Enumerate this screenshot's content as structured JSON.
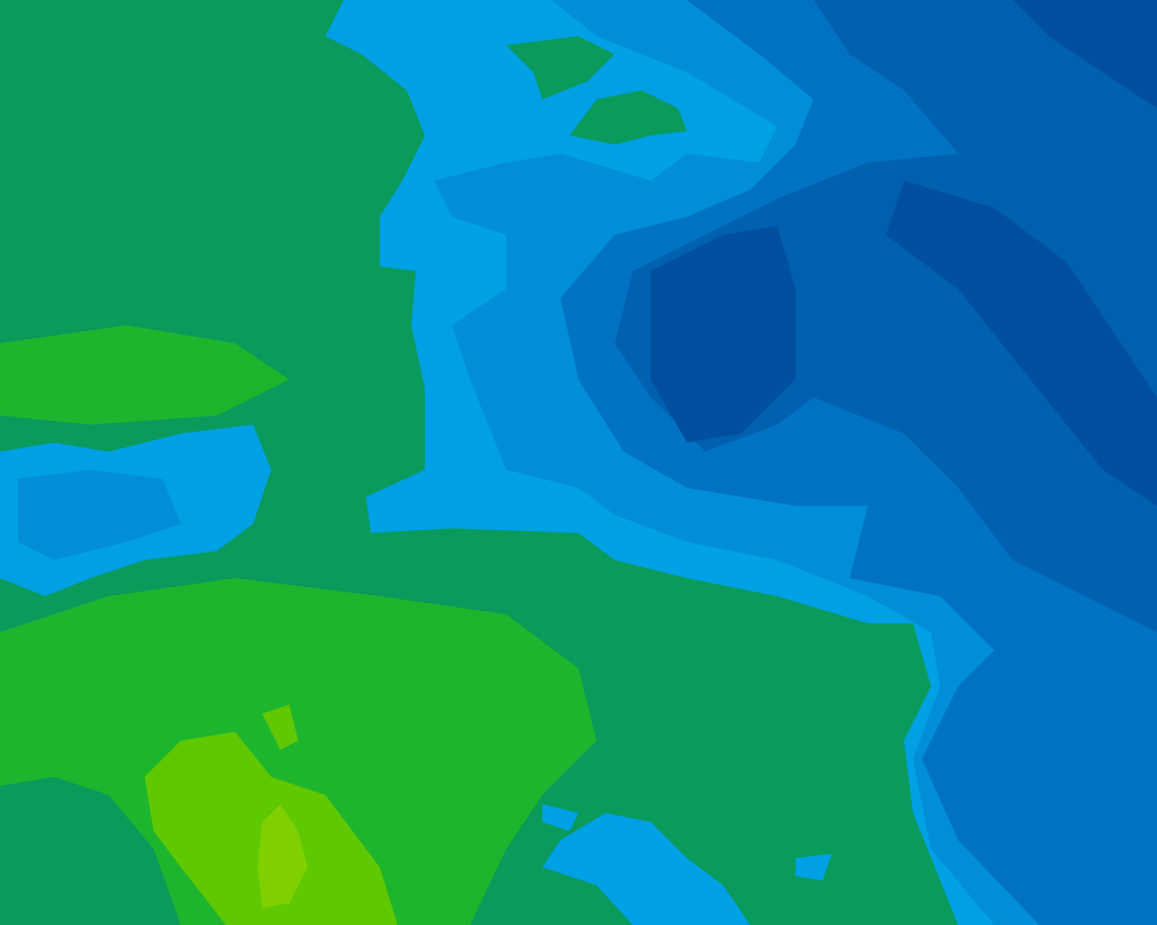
{
  "map": {
    "type": "colored elevation/bathymetry contour map",
    "palette": {
      "land_low": "#0a9a5c",
      "land_mid": "#1db52e",
      "land_high": "#5fc800",
      "land_peak": "#80d000",
      "water_shallow": "#00a0e4",
      "water_mid": "#008ed6",
      "water_deep": "#0072c2",
      "water_deeper": "#0060b0",
      "water_deepest": "#004f9e"
    }
  }
}
